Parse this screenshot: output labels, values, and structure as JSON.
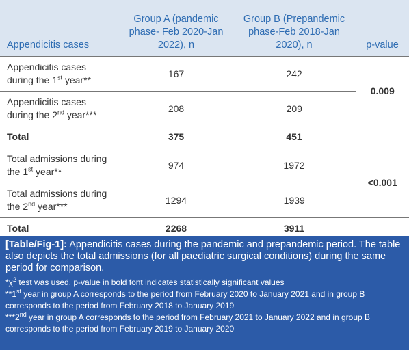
{
  "table": {
    "header": [
      "Appendicitis cases",
      "Group A (pandemic phase- Feb 2020-Jan 2022), n",
      "Group B (Prepandemic phase-Feb 2018-Jan 2020), n",
      "p-value"
    ],
    "groups": [
      {
        "rows": [
          {
            "label": [
              "Appendicitis cases during the 1",
              "st",
              " year**"
            ],
            "a": 167,
            "b": 242
          },
          {
            "label": [
              "Appendicitis cases during the 2",
              "nd",
              " year***"
            ],
            "a": 208,
            "b": 209
          }
        ],
        "total": {
          "label": "Total",
          "a": 375,
          "b": 451
        },
        "p": "0.009"
      },
      {
        "rows": [
          {
            "label": [
              "Total admissions during the 1",
              "st",
              " year**"
            ],
            "a": 974,
            "b": 1972
          },
          {
            "label": [
              "Total admissions during the 2",
              "nd",
              " year***"
            ],
            "a": 1294,
            "b": 1939
          }
        ],
        "total": {
          "label": "Total",
          "a": 2268,
          "b": 3911
        },
        "p": "<0.001"
      }
    ]
  },
  "caption": {
    "label": "[Table/Fig-1]:",
    "text": "Appendicitis cases during the pandemic and prepandemic period. The table also depicts the total admissions (for all paediatric surgical conditions) during the same period for comparison."
  },
  "notes": [
    [
      "*χ",
      "2",
      " test was used. p-value in bold font indicates statistically significant values"
    ],
    [
      "**1",
      "st",
      " year in group A corresponds to the period from February 2020 to January 2021 and in group B corresponds to the period from February 2018 to January 2019"
    ],
    [
      "***2",
      "nd",
      " year in group A corresponds to the period from February 2021 to January 2022 and in group B corresponds to the period from February 2019 to January 2020"
    ]
  ]
}
